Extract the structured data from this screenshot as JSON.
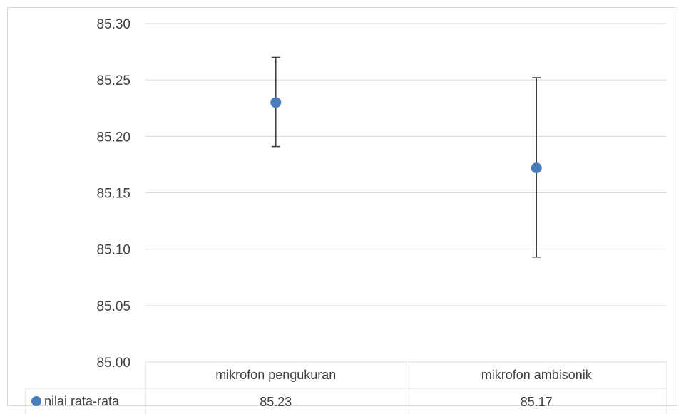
{
  "chart_data": {
    "type": "scatter",
    "categories": [
      "mikrofon pengukuran",
      "mikrofon ambisonik"
    ],
    "series": [
      {
        "name": "nilai rata-rata",
        "values": [
          85.23,
          85.172
        ],
        "error_low": [
          85.191,
          85.093
        ],
        "error_high": [
          85.27,
          85.252
        ],
        "color": "#4a7ebb"
      }
    ],
    "data_table": {
      "legend_label": "nilai rata-rata",
      "row_values": [
        "85.23",
        "85.17"
      ]
    },
    "yticks": [
      "85.00",
      "85.05",
      "85.10",
      "85.15",
      "85.20",
      "85.25",
      "85.30"
    ],
    "ylim": [
      85.0,
      85.3
    ],
    "grid": true,
    "title": "",
    "xlabel": "",
    "ylabel": ""
  },
  "colors": {
    "gridline": "#d9d9d9",
    "errorbar": "#404040",
    "marker": "#4a7ebb"
  }
}
